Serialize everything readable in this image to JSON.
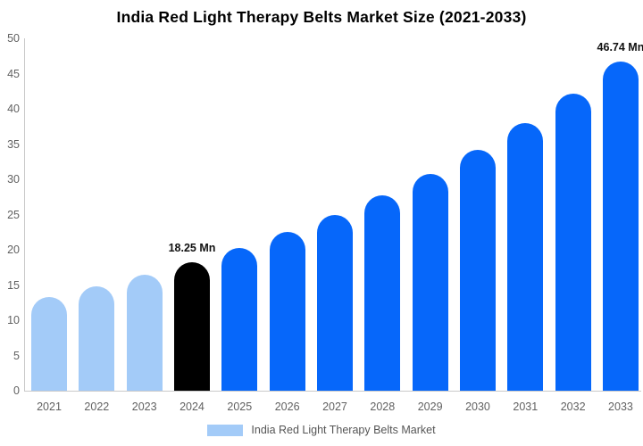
{
  "title": "India Red Light Therapy Belts Market Size (2021-2033)",
  "legend": {
    "label": "India Red Light Therapy Belts Market"
  },
  "colors": {
    "historical": "#a3cbf8",
    "base": "#000000",
    "forecast": "#0667fa",
    "axis_line": "#c9c9c9",
    "tick_text": "#616161",
    "annotation_text": "#111111",
    "legend_text": "#555555",
    "title_text": "#000000",
    "background": "#ffffff"
  },
  "chart_data": {
    "type": "bar",
    "title": "India Red Light Therapy Belts Market Size (2021-2033)",
    "xlabel": "",
    "ylabel": "",
    "unit": "Mn",
    "categories": [
      "2021",
      "2022",
      "2023",
      "2024",
      "2025",
      "2026",
      "2027",
      "2028",
      "2029",
      "2030",
      "2031",
      "2032",
      "2033"
    ],
    "values": [
      13.3,
      14.8,
      16.4,
      18.25,
      20.3,
      22.5,
      25.0,
      27.7,
      30.8,
      34.2,
      38.0,
      42.2,
      46.74
    ],
    "bar_roles": [
      "historical",
      "historical",
      "historical",
      "base",
      "forecast",
      "forecast",
      "forecast",
      "forecast",
      "forecast",
      "forecast",
      "forecast",
      "forecast",
      "forecast"
    ],
    "annotations": [
      {
        "category": "2024",
        "text": "18.25 Mn"
      },
      {
        "category": "2033",
        "text": "46.74 Mn"
      }
    ],
    "ylim": [
      0,
      50
    ],
    "ytick_step": 5,
    "grid": false,
    "legend_position": "bottom"
  }
}
